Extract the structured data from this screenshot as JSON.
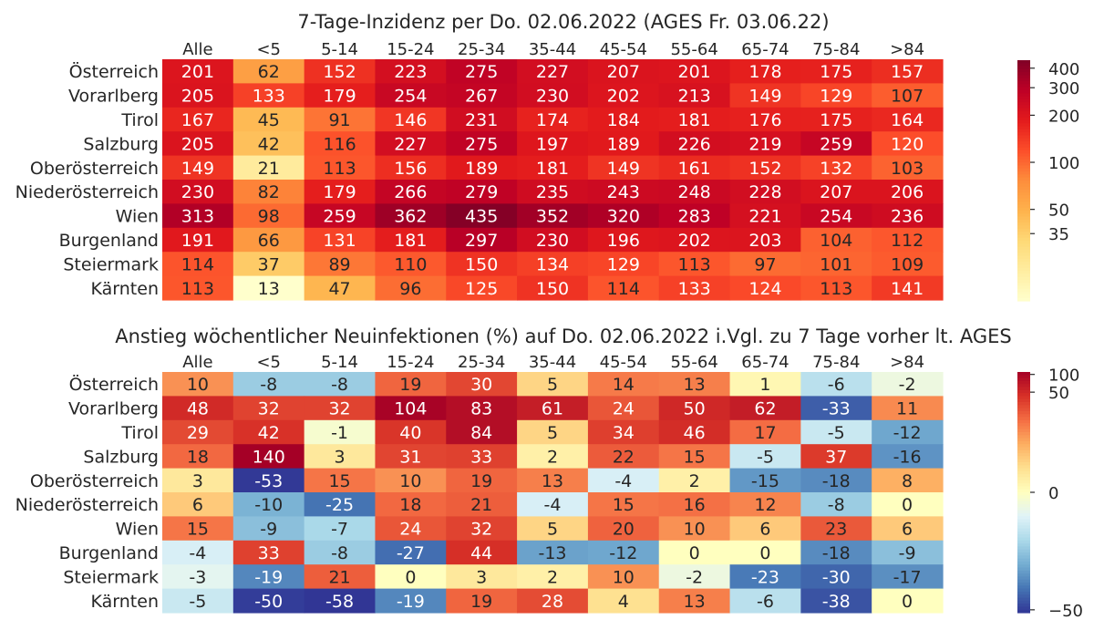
{
  "chart_data": [
    {
      "type": "heatmap",
      "title": "7-Tage-Inzidenz per Do. 02.06.2022  (AGES Fr. 03.06.22)",
      "columns": [
        "Alle",
        "<5",
        "5-14",
        "15-24",
        "25-34",
        "35-44",
        "45-54",
        "55-64",
        "65-74",
        "75-84",
        ">84"
      ],
      "rows": [
        "Österreich",
        "Vorarlberg",
        "Tirol",
        "Salzburg",
        "Oberösterreich",
        "Niederösterreich",
        "Wien",
        "Burgenland",
        "Steiermark",
        "Kärnten"
      ],
      "values": [
        [
          201,
          62,
          152,
          223,
          275,
          227,
          207,
          201,
          178,
          175,
          157
        ],
        [
          205,
          133,
          179,
          254,
          267,
          230,
          202,
          213,
          149,
          129,
          107
        ],
        [
          167,
          45,
          91,
          146,
          231,
          174,
          184,
          181,
          176,
          175,
          164
        ],
        [
          205,
          42,
          116,
          227,
          275,
          197,
          189,
          226,
          219,
          259,
          120
        ],
        [
          149,
          21,
          113,
          156,
          189,
          181,
          149,
          161,
          152,
          132,
          103
        ],
        [
          230,
          82,
          179,
          266,
          279,
          235,
          243,
          248,
          228,
          207,
          206
        ],
        [
          313,
          98,
          259,
          362,
          435,
          352,
          320,
          283,
          221,
          254,
          236
        ],
        [
          191,
          66,
          131,
          181,
          297,
          230,
          196,
          202,
          203,
          104,
          112
        ],
        [
          114,
          37,
          89,
          110,
          150,
          134,
          129,
          113,
          97,
          101,
          109
        ],
        [
          113,
          13,
          47,
          96,
          125,
          150,
          114,
          133,
          124,
          113,
          141
        ]
      ],
      "colormap": "YlOrRd",
      "color_scale": "log",
      "color_range": [
        13,
        450
      ],
      "colorbar_ticks": [
        400,
        300,
        200,
        100,
        50,
        35
      ]
    },
    {
      "type": "heatmap",
      "title": "Anstieg wöchentlicher Neuinfektionen (%) auf Do. 02.06.2022 i.Vgl. zu 7 Tage vorher lt. AGES",
      "columns": [
        "Alle",
        "<5",
        "5-14",
        "15-24",
        "25-34",
        "35-44",
        "45-54",
        "55-64",
        "65-74",
        "75-84",
        ">84"
      ],
      "rows": [
        "Österreich",
        "Vorarlberg",
        "Tirol",
        "Salzburg",
        "Oberösterreich",
        "Niederösterreich",
        "Wien",
        "Burgenland",
        "Steiermark",
        "Kärnten"
      ],
      "values": [
        [
          10,
          -8,
          -8,
          19,
          30,
          5,
          14,
          13,
          1,
          -6,
          -2
        ],
        [
          48,
          32,
          32,
          104,
          83,
          61,
          24,
          50,
          62,
          -33,
          11
        ],
        [
          29,
          42,
          -1,
          40,
          84,
          5,
          34,
          46,
          17,
          -5,
          -12
        ],
        [
          18,
          140,
          3,
          31,
          33,
          2,
          22,
          15,
          -5,
          37,
          -16
        ],
        [
          3,
          -53,
          15,
          10,
          19,
          13,
          -4,
          2,
          -15,
          -18,
          8
        ],
        [
          6,
          -10,
          -25,
          18,
          21,
          -4,
          15,
          16,
          12,
          -8,
          0
        ],
        [
          15,
          -9,
          -7,
          24,
          32,
          5,
          20,
          10,
          6,
          23,
          6
        ],
        [
          -4,
          33,
          -8,
          -27,
          44,
          -13,
          -12,
          0,
          0,
          -18,
          -9
        ],
        [
          -3,
          -19,
          21,
          0,
          3,
          2,
          10,
          -2,
          -23,
          -30,
          -17
        ],
        [
          -5,
          -50,
          -58,
          -19,
          19,
          28,
          4,
          13,
          -6,
          -38,
          0
        ]
      ],
      "colormap": "RdYlBu_r",
      "color_scale": "symlog",
      "color_range": [
        -55,
        110
      ],
      "colorbar_ticks": [
        100,
        50,
        0,
        -50
      ]
    }
  ]
}
